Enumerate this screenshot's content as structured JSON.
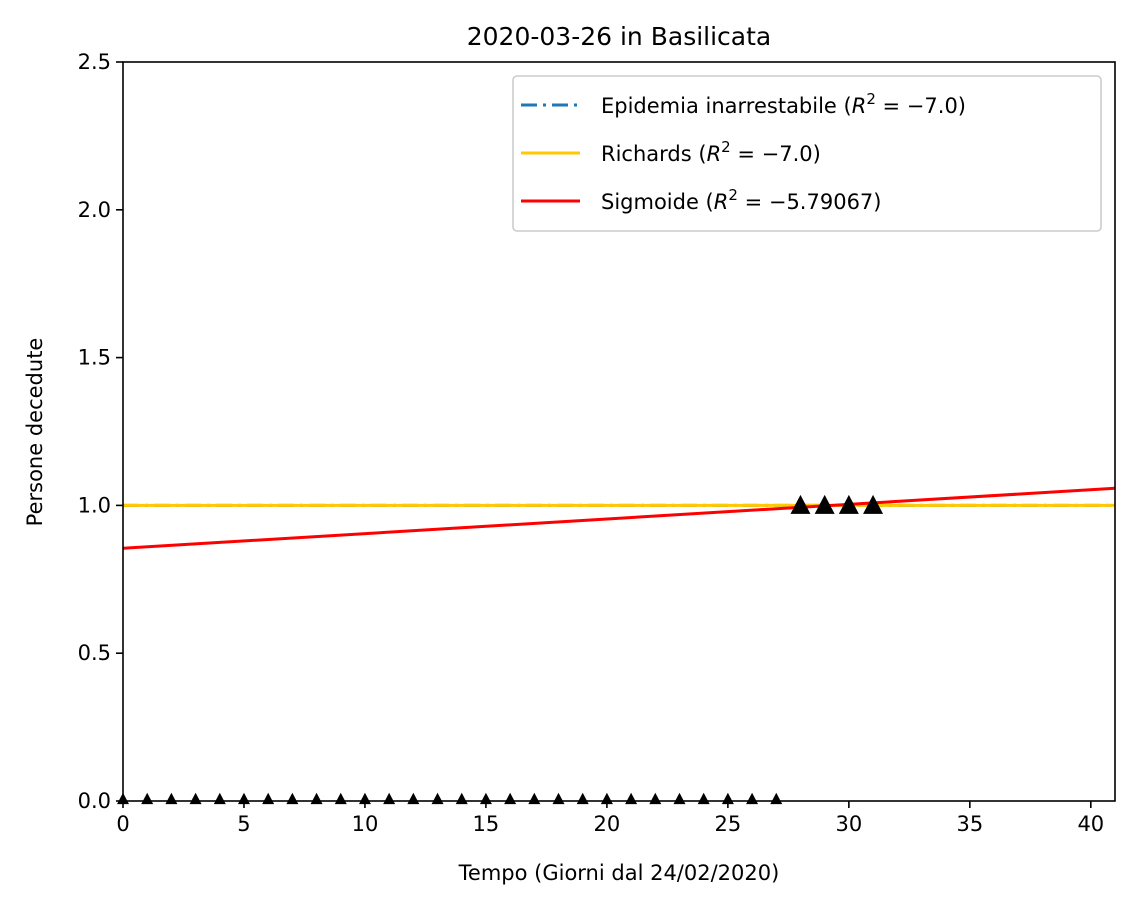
{
  "chart_data": {
    "type": "line",
    "title": "2020-03-26 in Basilicata",
    "xlabel": "Tempo (Giorni dal 24/02/2020)",
    "ylabel": "Persone decedute",
    "xlim": [
      0,
      41
    ],
    "ylim": [
      0,
      2.5
    ],
    "xticks": [
      0,
      5,
      10,
      15,
      20,
      25,
      30,
      35,
      40
    ],
    "xtick_labels": [
      "0",
      "5",
      "10",
      "15",
      "20",
      "25",
      "30",
      "35",
      "40"
    ],
    "yticks": [
      0,
      0.5,
      1,
      1.5,
      2,
      2.5
    ],
    "ytick_labels": [
      "0.0",
      "0.5",
      "1.0",
      "1.5",
      "2.0",
      "2.5"
    ],
    "grid": false,
    "legend_position": "top-right",
    "series": [
      {
        "name": "Epidemia inarrestabile",
        "r2": "−7.0",
        "style": "dashdot",
        "color": "#1f77b4",
        "x": [
          0,
          41
        ],
        "y": [
          1.0,
          1.0
        ]
      },
      {
        "name": "Richards",
        "r2": "−7.0",
        "style": "solid",
        "color": "#ffc800",
        "x": [
          0,
          41
        ],
        "y": [
          1.0,
          1.0
        ]
      },
      {
        "name": "Sigmoide",
        "r2": "−5.79067",
        "style": "solid",
        "color": "#ff0000",
        "x": [
          0,
          41
        ],
        "y": [
          0.855,
          1.058
        ]
      }
    ],
    "observed_small": {
      "marker": "triangle",
      "color": "#000000",
      "x": [
        0,
        1,
        2,
        3,
        4,
        5,
        6,
        7,
        8,
        9,
        10,
        11,
        12,
        13,
        14,
        15,
        16,
        17,
        18,
        19,
        20,
        21,
        22,
        23,
        24,
        25,
        26,
        27
      ],
      "y": [
        0,
        0,
        0,
        0,
        0,
        0,
        0,
        0,
        0,
        0,
        0,
        0,
        0,
        0,
        0,
        0,
        0,
        0,
        0,
        0,
        0,
        0,
        0,
        0,
        0,
        0,
        0,
        0
      ]
    },
    "observed_large": {
      "marker": "triangle",
      "color": "#000000",
      "x": [
        28,
        29,
        30,
        31
      ],
      "y": [
        1,
        1,
        1,
        1
      ]
    }
  }
}
